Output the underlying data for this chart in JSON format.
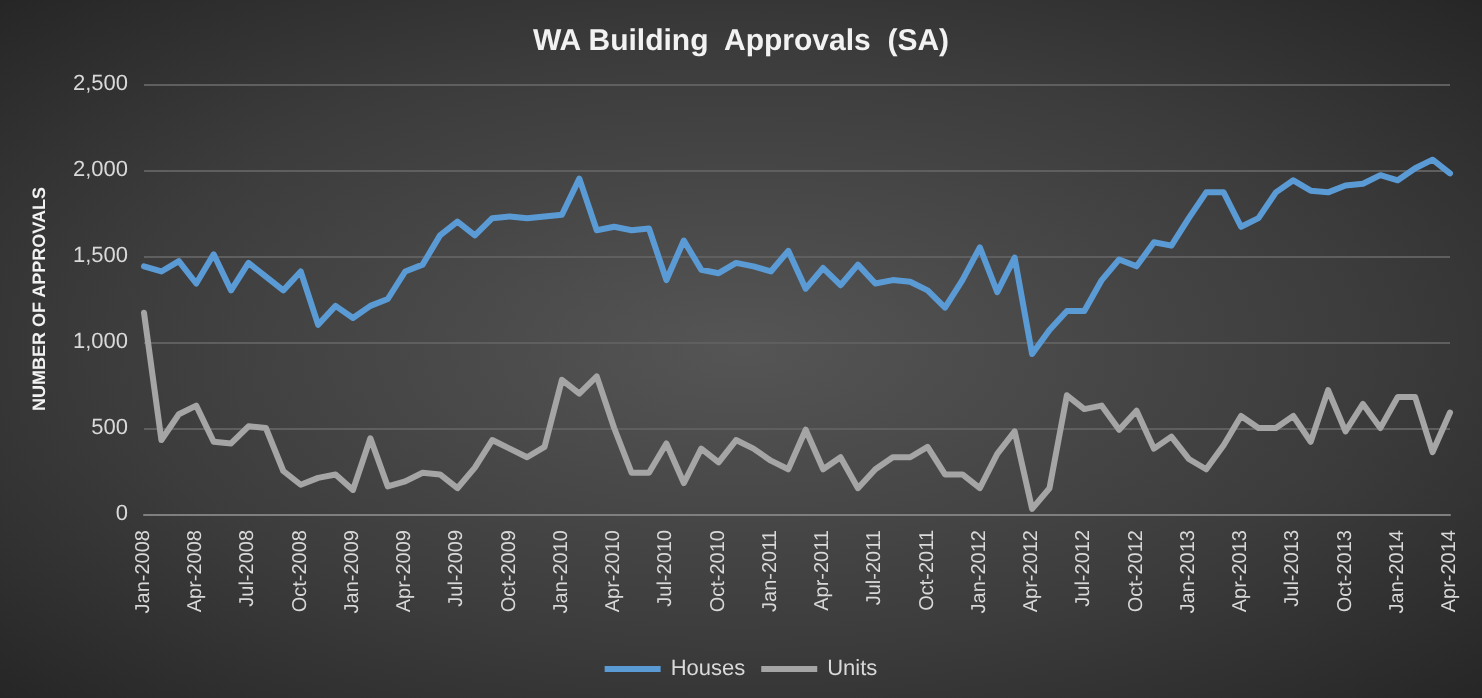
{
  "chart_data": {
    "type": "line",
    "title": "WA Building  Approvals  (SA)",
    "ylabel": "NUMBER OF APPROVALS",
    "categories": [
      "Jan-2008",
      null,
      null,
      "Apr-2008",
      null,
      null,
      "Jul-2008",
      null,
      null,
      "Oct-2008",
      null,
      null,
      "Jan-2009",
      null,
      null,
      "Apr-2009",
      null,
      null,
      "Jul-2009",
      null,
      null,
      "Oct-2009",
      null,
      null,
      "Jan-2010",
      null,
      null,
      "Apr-2010",
      null,
      null,
      "Jul-2010",
      null,
      null,
      "Oct-2010",
      null,
      null,
      "Jan-2011",
      null,
      null,
      "Apr-2011",
      null,
      null,
      "Jul-2011",
      null,
      null,
      "Oct-2011",
      null,
      null,
      "Jan-2012",
      null,
      null,
      "Apr-2012",
      null,
      null,
      "Jul-2012",
      null,
      null,
      "Oct-2012",
      null,
      null,
      "Jan-2013",
      null,
      null,
      "Apr-2013",
      null,
      null,
      "Jul-2013",
      null,
      null,
      "Oct-2013",
      null,
      null,
      "Jan-2014",
      null,
      null,
      "Apr-2014"
    ],
    "series": [
      {
        "name": "Houses",
        "color": "#5b9bd5",
        "values": [
          1440,
          1410,
          1470,
          1340,
          1510,
          1300,
          1460,
          1380,
          1300,
          1410,
          1100,
          1210,
          1140,
          1210,
          1250,
          1410,
          1450,
          1620,
          1700,
          1620,
          1720,
          1730,
          1720,
          1730,
          1740,
          1950,
          1650,
          1670,
          1650,
          1660,
          1360,
          1590,
          1420,
          1400,
          1460,
          1440,
          1410,
          1530,
          1310,
          1430,
          1330,
          1450,
          1340,
          1360,
          1350,
          1300,
          1200,
          1360,
          1550,
          1290,
          1490,
          930,
          1070,
          1180,
          1180,
          1360,
          1480,
          1440,
          1580,
          1560,
          1720,
          1870,
          1870,
          1670,
          1720,
          1870,
          1940,
          1880,
          1870,
          1910,
          1920,
          1970,
          1940,
          2010,
          2060,
          1980
        ]
      },
      {
        "name": "Units",
        "color": "#a5a5a5",
        "values": [
          1170,
          430,
          580,
          630,
          420,
          410,
          510,
          500,
          250,
          170,
          210,
          230,
          140,
          440,
          160,
          190,
          240,
          230,
          150,
          270,
          430,
          380,
          330,
          390,
          780,
          700,
          800,
          500,
          240,
          240,
          410,
          180,
          380,
          300,
          430,
          380,
          310,
          260,
          490,
          260,
          330,
          150,
          260,
          330,
          330,
          390,
          230,
          230,
          150,
          350,
          480,
          30,
          150,
          690,
          610,
          630,
          490,
          600,
          380,
          450,
          320,
          260,
          400,
          570,
          500,
          500,
          570,
          420,
          720,
          480,
          640,
          500,
          680,
          680,
          360,
          590
        ]
      }
    ],
    "ylim": [
      0,
      2500
    ],
    "yticks": [
      0,
      500,
      {
        "value": 1000,
        "label": "1,000"
      },
      {
        "value": 1500,
        "label": "1,500"
      },
      {
        "value": 2000,
        "label": "2,000"
      },
      {
        "value": 2500,
        "label": "2,500"
      }
    ],
    "grid": "y",
    "legend": "bottom",
    "marker": "none",
    "line_style": "solid"
  }
}
